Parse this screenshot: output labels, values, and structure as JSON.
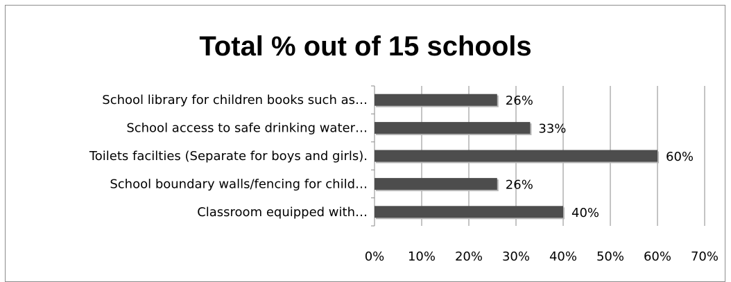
{
  "chart_data": {
    "type": "bar",
    "orientation": "horizontal",
    "title": "Total % out of 15 schools",
    "categories": [
      "School library for children books such as…",
      "School access to safe drinking water…",
      "Toilets facilties (Separate for boys and girls).",
      "School boundary walls/fencing for child…",
      "Classroom equipped with…"
    ],
    "values": [
      26,
      33,
      60,
      26,
      40
    ],
    "value_labels": [
      "26%",
      "33%",
      "60%",
      "26%",
      "40%"
    ],
    "xlim": [
      0,
      70
    ],
    "xticks": [
      "0%",
      "10%",
      "20%",
      "30%",
      "40%",
      "50%",
      "60%",
      "70%"
    ],
    "grid": true,
    "legend": "none",
    "bar_color": "#4d4d4d"
  }
}
